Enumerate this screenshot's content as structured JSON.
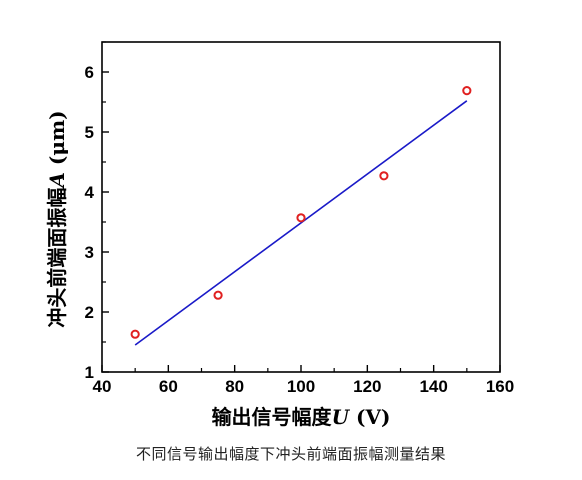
{
  "chart_data": {
    "type": "scatter",
    "xlabel_prefix": "输出信号幅度",
    "xlabel_symbol": "U",
    "xlabel_unit": " (V)",
    "ylabel_prefix": "冲头前端面振幅",
    "ylabel_symbol": "A",
    "ylabel_unit": " (μm)",
    "xlim": [
      40,
      160
    ],
    "ylim": [
      1,
      6.5
    ],
    "x_ticks": [
      40,
      60,
      80,
      100,
      120,
      140,
      160
    ],
    "y_ticks": [
      1,
      2,
      3,
      4,
      5,
      6
    ],
    "grid": false,
    "series": [
      {
        "kind": "markers",
        "marker": "open-circle",
        "color": "#e02020",
        "x": [
          50,
          75,
          100,
          125,
          150
        ],
        "y": [
          1.63,
          2.28,
          3.57,
          4.27,
          5.69
        ]
      },
      {
        "kind": "fit-line",
        "color": "#1a1ac8",
        "x": [
          50,
          150
        ],
        "y": [
          1.45,
          5.52
        ]
      }
    ]
  },
  "caption": "不同信号输出幅度下冲头前端面振幅测量结果"
}
